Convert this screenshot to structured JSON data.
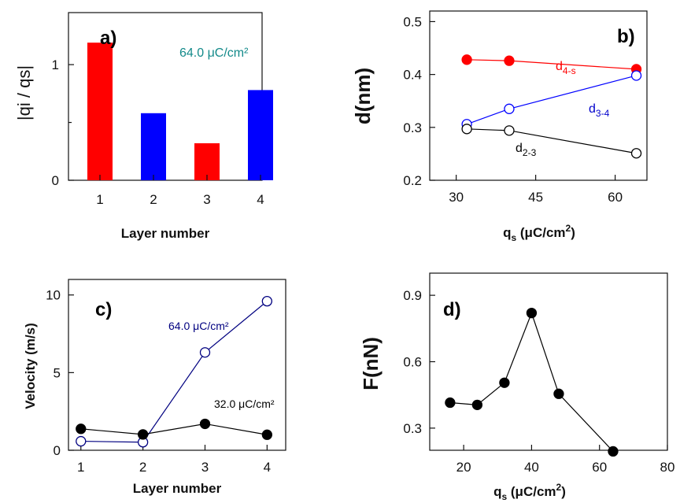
{
  "chart_data": [
    {
      "type": "bar",
      "panel_label": "a)",
      "annotation": "64.0 μC/cm²",
      "annotation_color": "#138a8a",
      "xlabel": "Layer number",
      "ylabel": "|qi / qs|",
      "categories": [
        "1",
        "2",
        "3",
        "4"
      ],
      "values": [
        1.19,
        0.58,
        0.32,
        0.78
      ],
      "bar_colors": [
        "#ff0000",
        "#0000ff",
        "#ff0000",
        "#0000ff"
      ],
      "ylim": [
        0,
        1.45
      ],
      "yticks": [
        "0",
        "1"
      ],
      "grid": false
    },
    {
      "type": "line",
      "panel_label": "b)",
      "xlabel": "qs (μC/cm²)",
      "ylabel": "d(nm)",
      "xlim": [
        25,
        66
      ],
      "ylim": [
        0.2,
        0.52
      ],
      "xticks": [
        "30",
        "45",
        "60"
      ],
      "yticks": [
        "0.2",
        "0.3",
        "0.4",
        "0.5"
      ],
      "grid": false,
      "series": [
        {
          "name": "d4-s",
          "color": "#ff0000",
          "filled": true,
          "x": [
            32,
            40,
            64
          ],
          "y": [
            0.428,
            0.426,
            0.41
          ]
        },
        {
          "name": "d3-4",
          "color": "#0000ff",
          "filled": false,
          "x": [
            32,
            40,
            64
          ],
          "y": [
            0.306,
            0.335,
            0.398
          ]
        },
        {
          "name": "d2-3",
          "color": "#000000",
          "filled": false,
          "x": [
            32,
            40,
            64
          ],
          "y": [
            0.297,
            0.294,
            0.251
          ]
        }
      ]
    },
    {
      "type": "line",
      "panel_label": "c)",
      "xlabel": "Layer number",
      "ylabel": "Velocity (m/s)",
      "xlim": [
        0.8,
        4.3
      ],
      "ylim": [
        0,
        11
      ],
      "xticks": [
        "1",
        "2",
        "3",
        "4"
      ],
      "yticks": [
        "0",
        "5",
        "10"
      ],
      "grid": false,
      "series": [
        {
          "name": "64.0 μC/cm²",
          "color": "#000080",
          "filled": false,
          "x": [
            1,
            2,
            3,
            4
          ],
          "y": [
            0.58,
            0.52,
            6.3,
            9.6
          ]
        },
        {
          "name": "32.0 μC/cm²",
          "color": "#000000",
          "filled": true,
          "x": [
            1,
            2,
            3,
            4
          ],
          "y": [
            1.38,
            1.02,
            1.7,
            1.0
          ]
        }
      ]
    },
    {
      "type": "line",
      "panel_label": "d)",
      "xlabel": "qs (μC/cm²)",
      "ylabel": "F(nN)",
      "xlim": [
        10,
        80
      ],
      "ylim": [
        0.2,
        1.0
      ],
      "xticks": [
        "20",
        "40",
        "60",
        "80"
      ],
      "yticks": [
        "0.3",
        "0.6",
        "0.9"
      ],
      "grid": false,
      "series": [
        {
          "name": "",
          "color": "#000000",
          "filled": true,
          "x": [
            16,
            24,
            32,
            40,
            48,
            64
          ],
          "y": [
            0.415,
            0.405,
            0.505,
            0.82,
            0.455,
            0.195
          ]
        }
      ]
    }
  ]
}
